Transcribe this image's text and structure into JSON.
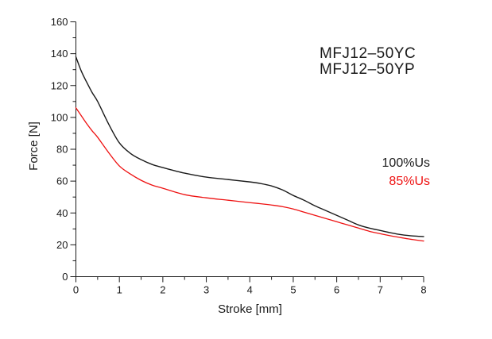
{
  "figure": {
    "background": "#ffffff",
    "axis_color": "#1a1a1a"
  },
  "annotation": {
    "line1": "MFJ12–50YC",
    "line2": "MFJ12–50YP"
  },
  "chart_data": {
    "type": "line",
    "title": "",
    "xlabel": "Stroke [mm]",
    "ylabel": "Force [N]",
    "xlim": [
      0,
      8
    ],
    "ylim": [
      0,
      160
    ],
    "x_major_step": 1,
    "x_minor_step": 0.5,
    "y_major_step": 20,
    "y_minor_step": 10,
    "grid": false,
    "legend_position": "right-middle",
    "x": [
      0,
      0.125,
      0.25,
      0.375,
      0.5,
      0.75,
      1,
      1.25,
      1.5,
      1.75,
      2,
      2.5,
      3,
      3.5,
      4,
      4.25,
      4.5,
      4.75,
      5,
      5.25,
      5.5,
      5.75,
      6,
      6.25,
      6.5,
      6.75,
      7,
      7.25,
      7.5,
      7.75,
      8
    ],
    "series": [
      {
        "name": "100%Us",
        "color": "#1a1a1a",
        "width": 1.4,
        "values": [
          138,
          129,
          122,
          115.5,
          110,
          96,
          84,
          77.5,
          73.5,
          70.5,
          68.5,
          65,
          62.5,
          61,
          59.5,
          58.5,
          57,
          54.5,
          51,
          48,
          44.5,
          41.5,
          38.5,
          35.5,
          32.5,
          30.5,
          29,
          27.5,
          26.3,
          25.6,
          25.2
        ]
      },
      {
        "name": "85%Us",
        "color": "#ee1111",
        "width": 1.3,
        "values": [
          106,
          101,
          96,
          91.5,
          87.5,
          78,
          69.5,
          64.5,
          60.5,
          57.5,
          55.5,
          51.5,
          49.5,
          48,
          46.5,
          45.8,
          45,
          44,
          42.5,
          40.5,
          38.5,
          36.5,
          34.5,
          32.5,
          30.5,
          28.5,
          27,
          25.6,
          24.4,
          23.3,
          22.4
        ]
      }
    ]
  }
}
